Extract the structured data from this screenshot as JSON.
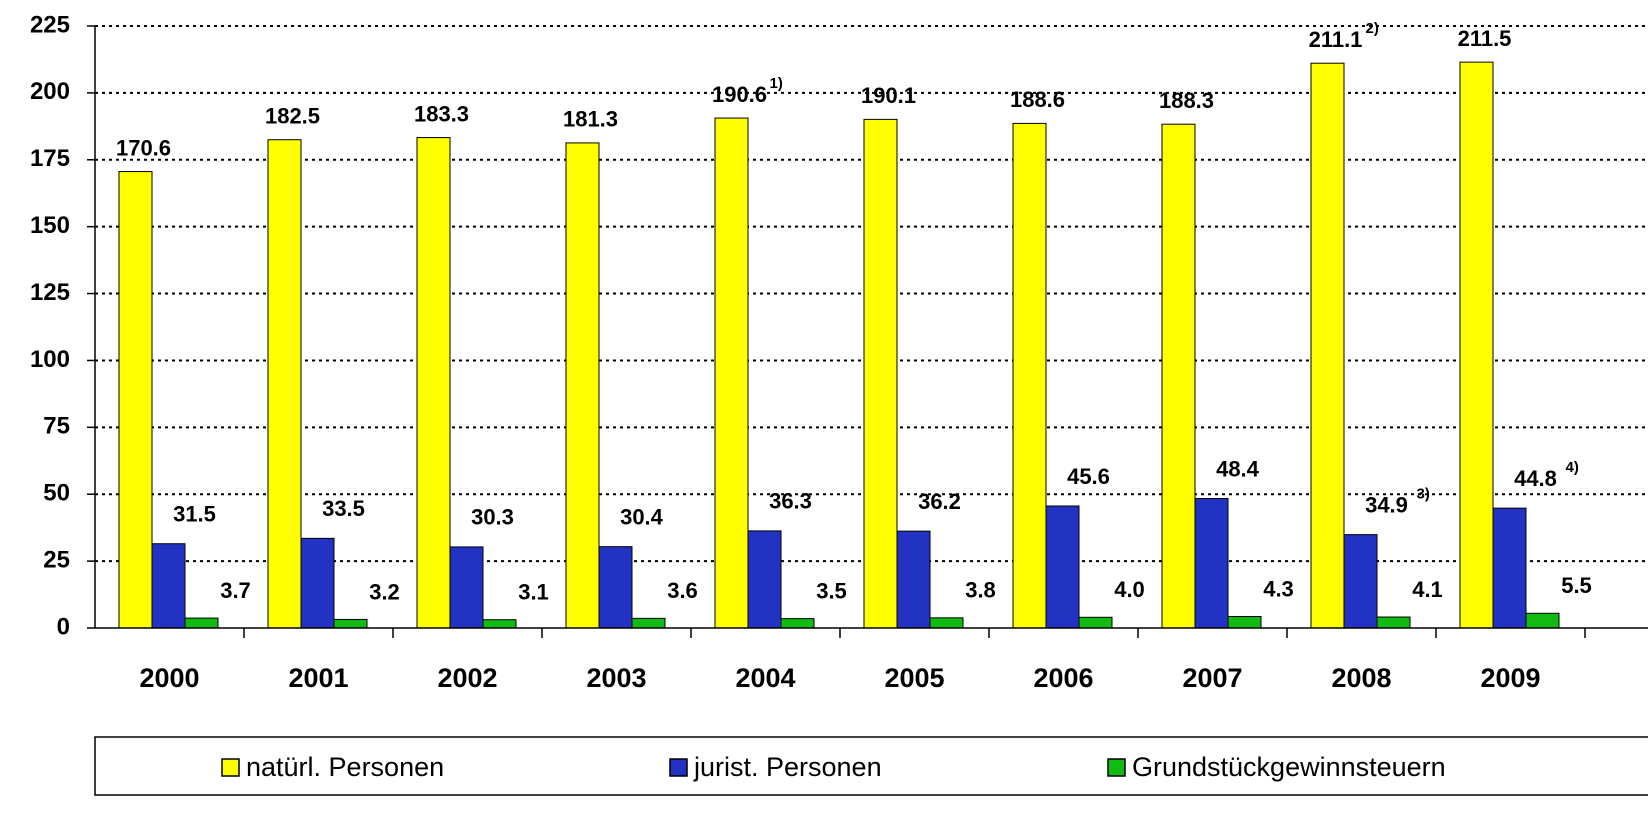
{
  "chart_data": {
    "type": "bar",
    "categories": [
      "2000",
      "2001",
      "2002",
      "2003",
      "2004",
      "2005",
      "2006",
      "2007",
      "2008",
      "2009"
    ],
    "series": [
      {
        "name": "natürl. Personen",
        "color": "#ffff00",
        "values": [
          170.6,
          182.5,
          183.3,
          181.3,
          190.6,
          190.1,
          188.6,
          188.3,
          211.1,
          211.5
        ]
      },
      {
        "name": "jurist. Personen",
        "color": "#2233c4",
        "values": [
          31.5,
          33.5,
          30.3,
          30.4,
          36.3,
          36.2,
          45.6,
          48.4,
          34.9,
          44.8
        ]
      },
      {
        "name": "Grundstückgewinnsteuern",
        "color": "#11bb11",
        "values": [
          3.7,
          3.2,
          3.1,
          3.6,
          3.5,
          3.8,
          4.0,
          4.3,
          4.1,
          5.5
        ],
        "value_labels": [
          "3.7",
          "3.2",
          "3.1",
          "3.6",
          "3.5",
          "3.8",
          "4.0",
          "4.3",
          "4.1",
          "5.5"
        ]
      }
    ],
    "footnotes": [
      {
        "text": "1)",
        "category": "2004",
        "series": "natürl. Personen"
      },
      {
        "text": "2)",
        "category": "2008",
        "series": "natürl. Personen"
      },
      {
        "text": "3)",
        "category": "2008",
        "series": "jurist. Personen"
      },
      {
        "text": "4)",
        "category": "2009",
        "series": "jurist. Personen"
      }
    ],
    "ylim": [
      0,
      225
    ],
    "yticks": [
      0,
      25,
      50,
      75,
      100,
      125,
      150,
      175,
      200,
      225
    ],
    "grid": true,
    "legend": "bottom"
  }
}
